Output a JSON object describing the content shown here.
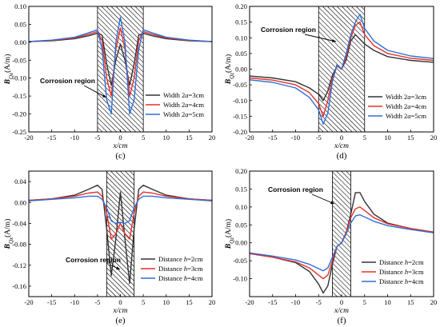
{
  "colors": {
    "black": "#333333",
    "red": "#e8302a",
    "blue": "#2f6fd6",
    "hatch": "#000000"
  },
  "annotation": "Corrosion region",
  "chart_data": [
    {
      "id": "c",
      "label": "(c)",
      "type": "line",
      "ylabel_main": "B",
      "ylabel_sub": "Qx",
      "ylabel_unit": "(A/m)",
      "xlabel_main": "x",
      "xlabel_unit": "/cm",
      "xlim": [
        -20,
        20
      ],
      "ylim": [
        -0.25,
        0.1
      ],
      "xticks": [
        -20,
        -15,
        -10,
        -5,
        0,
        5,
        10,
        15,
        20
      ],
      "xtick_labels": [
        "-20",
        "-15",
        "-10",
        "-5",
        "0",
        "5",
        "10",
        "15",
        "20"
      ],
      "yticks": [
        -0.25,
        -0.2,
        -0.15,
        -0.1,
        -0.05,
        0.0,
        0.05,
        0.1
      ],
      "ytick_labels": [
        "-0.25",
        "-0.20",
        "-0.15",
        "-0.10",
        "-0.05",
        "0.00",
        "0.05",
        "0.10"
      ],
      "region": [
        -5,
        5
      ],
      "legend_position": "bottom-right",
      "series": [
        {
          "name_pre": "Width 2",
          "name_var": "a",
          "name_post": "=3cm",
          "color": "black",
          "x": [
            -20,
            -15,
            -10,
            -7,
            -5,
            -4,
            -3,
            -2,
            -1,
            0,
            1,
            2,
            3,
            4,
            5,
            7,
            10,
            15,
            20
          ],
          "y": [
            0.002,
            0.004,
            0.01,
            0.018,
            0.025,
            0.02,
            -0.06,
            -0.12,
            -0.05,
            -0.005,
            -0.05,
            -0.12,
            -0.06,
            0.02,
            0.025,
            0.018,
            0.01,
            0.004,
            0.002
          ]
        },
        {
          "name_pre": "Width 2",
          "name_var": "a",
          "name_post": "=4cm",
          "color": "red",
          "x": [
            -20,
            -15,
            -10,
            -7,
            -5,
            -4,
            -3,
            -2,
            -1,
            0,
            1,
            2,
            3,
            4,
            5,
            7,
            10,
            15,
            20
          ],
          "y": [
            0.002,
            0.005,
            0.012,
            0.022,
            0.03,
            0.005,
            -0.1,
            -0.15,
            -0.02,
            0.04,
            -0.02,
            -0.15,
            -0.1,
            0.005,
            0.03,
            0.022,
            0.012,
            0.005,
            0.002
          ]
        },
        {
          "name_pre": "Width 2",
          "name_var": "a",
          "name_post": "=5cm",
          "color": "blue",
          "x": [
            -20,
            -15,
            -10,
            -7,
            -5,
            -4,
            -3,
            -2,
            -1,
            0,
            1,
            2,
            3,
            4,
            5,
            7,
            10,
            15,
            20
          ],
          "y": [
            0.002,
            0.006,
            0.014,
            0.026,
            0.035,
            -0.02,
            -0.16,
            -0.2,
            0.0,
            0.07,
            0.0,
            -0.2,
            -0.16,
            -0.02,
            0.035,
            0.026,
            0.014,
            0.006,
            0.002
          ]
        }
      ]
    },
    {
      "id": "d",
      "label": "(d)",
      "type": "line",
      "ylabel_main": "B",
      "ylabel_sub": "Qz",
      "ylabel_unit": "(A/m)",
      "xlabel_main": "x",
      "xlabel_unit": "/cm",
      "xlim": [
        -20,
        20
      ],
      "ylim": [
        -0.2,
        0.2
      ],
      "xticks": [
        -20,
        -15,
        -10,
        -5,
        0,
        5,
        10,
        15,
        20
      ],
      "xtick_labels": [
        "-20",
        "-15",
        "-10",
        "-5",
        "0",
        "5",
        "10",
        "15",
        "20"
      ],
      "yticks": [
        -0.2,
        -0.15,
        -0.1,
        -0.05,
        0.0,
        0.05,
        0.1,
        0.15,
        0.2
      ],
      "ytick_labels": [
        "-0.20",
        "-0.15",
        "-0.10",
        "-0.05",
        "0.00",
        "0.05",
        "0.10",
        "0.15",
        "0.20"
      ],
      "region": [
        -5,
        5
      ],
      "legend_position": "bottom-right",
      "series": [
        {
          "name_pre": "Width 2",
          "name_var": "a",
          "name_post": "=3cm",
          "color": "black",
          "x": [
            -20,
            -15,
            -10,
            -7,
            -5,
            -4,
            -3,
            -2,
            -1,
            0,
            1,
            2,
            3,
            4,
            5,
            7,
            10,
            15,
            20
          ],
          "y": [
            -0.022,
            -0.028,
            -0.04,
            -0.06,
            -0.08,
            -0.1,
            -0.07,
            -0.02,
            0.01,
            0.0,
            0.03,
            0.09,
            0.11,
            0.095,
            0.08,
            0.06,
            0.04,
            0.028,
            0.022
          ]
        },
        {
          "name_pre": "Width 2",
          "name_var": "a",
          "name_post": "=4cm",
          "color": "red",
          "x": [
            -20,
            -15,
            -10,
            -7,
            -5,
            -4,
            -3,
            -2,
            -1,
            0,
            1,
            2,
            3,
            4,
            5,
            7,
            10,
            15,
            20
          ],
          "y": [
            -0.028,
            -0.035,
            -0.05,
            -0.075,
            -0.11,
            -0.15,
            -0.1,
            -0.03,
            0.01,
            0.0,
            0.04,
            0.1,
            0.14,
            0.15,
            0.11,
            0.075,
            0.05,
            0.035,
            0.028
          ]
        },
        {
          "name_pre": "Width 2",
          "name_var": "a",
          "name_post": "=5cm",
          "color": "blue",
          "x": [
            -20,
            -15,
            -10,
            -7,
            -5,
            -4,
            -3,
            -2,
            -1,
            0,
            1,
            2,
            3,
            4,
            5,
            7,
            10,
            15,
            20
          ],
          "y": [
            -0.034,
            -0.042,
            -0.06,
            -0.09,
            -0.13,
            -0.175,
            -0.14,
            -0.04,
            0.015,
            0.0,
            0.05,
            0.11,
            0.15,
            0.175,
            0.13,
            0.09,
            0.06,
            0.042,
            0.034
          ]
        }
      ]
    },
    {
      "id": "e",
      "label": "(e)",
      "type": "line",
      "ylabel_main": "B",
      "ylabel_sub": "Qx",
      "ylabel_unit": "(A/m)",
      "xlabel_main": "x",
      "xlabel_unit": "/cm",
      "xlim": [
        -20,
        20
      ],
      "ylim": [
        -0.18,
        0.06
      ],
      "xticks": [
        -20,
        -15,
        -10,
        -5,
        0,
        5,
        10,
        15,
        20
      ],
      "xtick_labels": [
        "-20",
        "-15",
        "-10",
        "-5",
        "0",
        "5",
        "10",
        "15",
        "20"
      ],
      "yticks": [
        -0.16,
        -0.12,
        -0.08,
        -0.04,
        0.0,
        0.04
      ],
      "ytick_labels": [
        "-0.16",
        "-0.12",
        "-0.08",
        "-0.04",
        "0.00",
        "0.04"
      ],
      "region": [
        -3,
        3
      ],
      "legend_position": "bottom-right",
      "series": [
        {
          "name_pre": "Distance ",
          "name_var": "h",
          "name_post": "=2cm",
          "color": "black",
          "x": [
            -20,
            -15,
            -10,
            -7,
            -5,
            -4,
            -3,
            -2,
            -1,
            0,
            1,
            2,
            3,
            4,
            5,
            7,
            10,
            15,
            20
          ],
          "y": [
            0.004,
            0.007,
            0.014,
            0.025,
            0.033,
            0.025,
            -0.05,
            -0.14,
            -0.07,
            0.02,
            -0.07,
            -0.155,
            -0.05,
            0.025,
            0.033,
            0.025,
            0.014,
            0.007,
            0.004
          ]
        },
        {
          "name_pre": "Distance ",
          "name_var": "h",
          "name_post": "=3cm",
          "color": "red",
          "x": [
            -20,
            -15,
            -10,
            -7,
            -5,
            -4,
            -3,
            -2,
            -1,
            0,
            1,
            2,
            3,
            4,
            5,
            7,
            10,
            15,
            20
          ],
          "y": [
            0.004,
            0.007,
            0.012,
            0.018,
            0.02,
            0.012,
            -0.02,
            -0.07,
            -0.06,
            -0.04,
            -0.06,
            -0.07,
            -0.02,
            0.012,
            0.02,
            0.018,
            0.012,
            0.007,
            0.004
          ]
        },
        {
          "name_pre": "Distance ",
          "name_var": "h",
          "name_post": "=4cm",
          "color": "blue",
          "x": [
            -20,
            -15,
            -10,
            -7,
            -5,
            -4,
            -3,
            -2,
            -1,
            0,
            1,
            2,
            3,
            4,
            5,
            7,
            10,
            15,
            20
          ],
          "y": [
            0.003,
            0.006,
            0.009,
            0.012,
            0.012,
            0.006,
            -0.01,
            -0.035,
            -0.04,
            -0.038,
            -0.04,
            -0.035,
            -0.01,
            0.006,
            0.012,
            0.012,
            0.009,
            0.006,
            0.003
          ]
        }
      ]
    },
    {
      "id": "f",
      "label": "(f)",
      "type": "line",
      "ylabel_main": "B",
      "ylabel_sub": "Qz",
      "ylabel_unit": "(A/m)",
      "xlabel_main": "x",
      "xlabel_unit": "/cm",
      "xlim": [
        -20,
        20
      ],
      "ylim": [
        -0.15,
        0.2
      ],
      "xticks": [
        -20,
        -15,
        -10,
        -5,
        0,
        5,
        10,
        15,
        20
      ],
      "xtick_labels": [
        "-20",
        "-15",
        "-10",
        "-5",
        "0",
        "5",
        "10",
        "15",
        "20"
      ],
      "yticks": [
        -0.15,
        -0.1,
        -0.05,
        0.0,
        0.05,
        0.1,
        0.15,
        0.2
      ],
      "ytick_labels": [
        "",
        "-0.10",
        "-0.05",
        "0.00",
        "0.05",
        "0.10",
        "0.15",
        "0.20"
      ],
      "region": [
        -2,
        2
      ],
      "legend_position": "bottom-right",
      "series": [
        {
          "name_pre": "Distance ",
          "name_var": "h",
          "name_post": "=2cm",
          "color": "black",
          "x": [
            -20,
            -15,
            -10,
            -7,
            -5,
            -4,
            -3,
            -2,
            -1,
            0,
            1,
            2,
            3,
            4,
            5,
            7,
            10,
            15,
            20
          ],
          "y": [
            -0.03,
            -0.04,
            -0.055,
            -0.08,
            -0.115,
            -0.14,
            -0.12,
            -0.06,
            -0.01,
            0.0,
            0.03,
            0.08,
            0.14,
            0.14,
            0.115,
            0.08,
            0.055,
            0.04,
            0.03
          ]
        },
        {
          "name_pre": "Distance ",
          "name_var": "h",
          "name_post": "=3cm",
          "color": "red",
          "x": [
            -20,
            -15,
            -10,
            -7,
            -5,
            -4,
            -3,
            -2,
            -1,
            0,
            1,
            2,
            3,
            4,
            5,
            7,
            10,
            15,
            20
          ],
          "y": [
            -0.03,
            -0.04,
            -0.053,
            -0.07,
            -0.09,
            -0.1,
            -0.09,
            -0.05,
            -0.01,
            0.0,
            0.03,
            0.07,
            0.095,
            0.1,
            0.09,
            0.07,
            0.053,
            0.04,
            0.03
          ]
        },
        {
          "name_pre": "Distance ",
          "name_var": "h",
          "name_post": "=4cm",
          "color": "blue",
          "x": [
            -20,
            -15,
            -10,
            -7,
            -5,
            -4,
            -3,
            -2,
            -1,
            0,
            1,
            2,
            3,
            4,
            5,
            7,
            10,
            15,
            20
          ],
          "y": [
            -0.028,
            -0.037,
            -0.048,
            -0.06,
            -0.072,
            -0.078,
            -0.07,
            -0.04,
            -0.01,
            0.0,
            0.025,
            0.055,
            0.075,
            0.078,
            0.072,
            0.06,
            0.048,
            0.037,
            0.028
          ]
        }
      ]
    }
  ]
}
